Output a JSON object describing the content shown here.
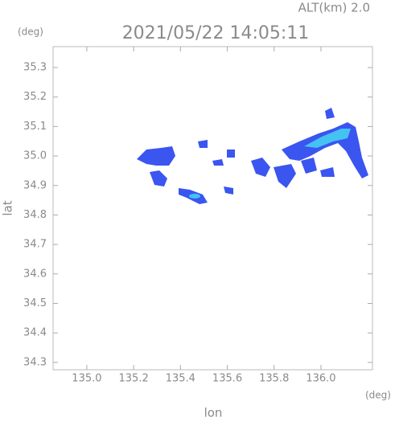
{
  "chart_data": {
    "type": "map",
    "title": "2021/05/22 14:05:11",
    "subtitle": "ALT(km) 2.0",
    "x_label": "lon",
    "y_label": "lat",
    "x_unit": "(deg)",
    "y_unit": "(deg)",
    "xlim": [
      134.856,
      136.22
    ],
    "ylim": [
      34.275,
      35.371
    ],
    "xticks": [
      {
        "value": 135.0,
        "label": "135.0"
      },
      135.2,
      135.4,
      135.6,
      135.8,
      {
        "value": 136.0,
        "label": "136.0"
      }
    ],
    "yticks": [
      35.3,
      35.2,
      35.1,
      {
        "value": 35.0,
        "label": "35.0"
      },
      34.9,
      34.8,
      34.7,
      34.6,
      34.5,
      34.4,
      34.3
    ]
  }
}
